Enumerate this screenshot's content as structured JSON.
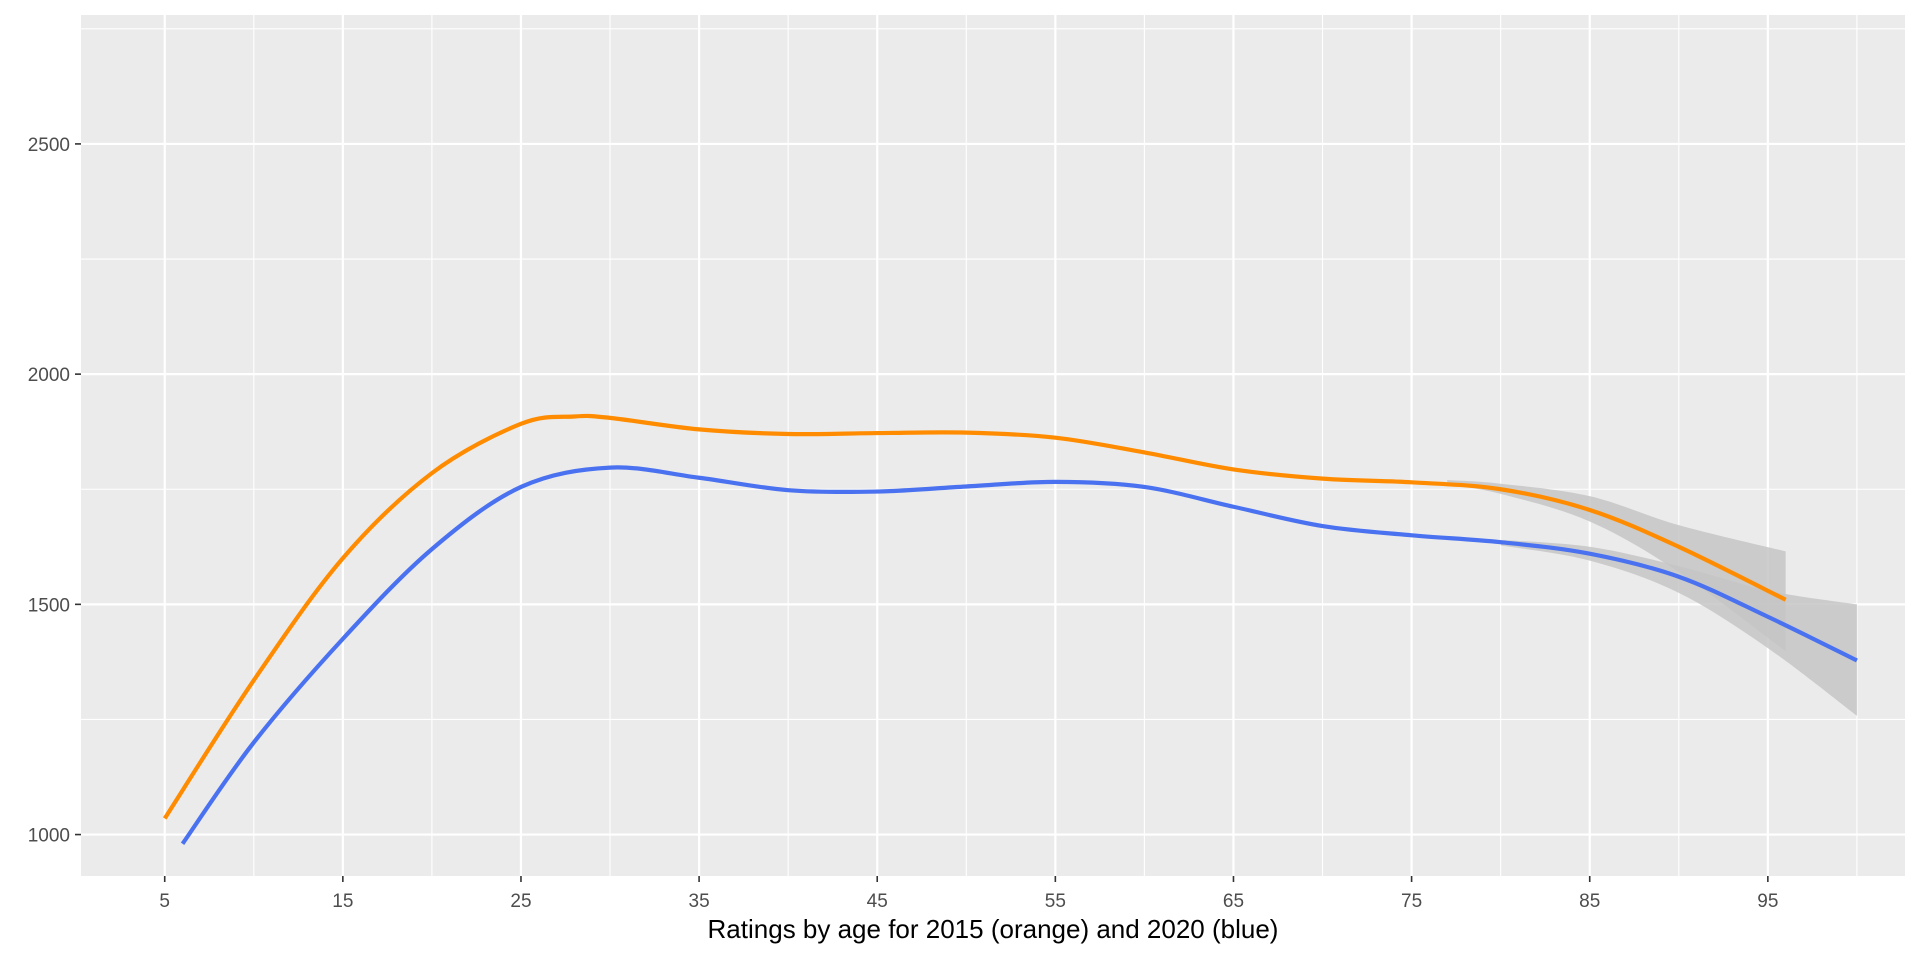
{
  "chart_data": {
    "type": "line",
    "title": "",
    "xlabel": "Ratings by age for 2015 (orange) and 2020 (blue)",
    "ylabel": "",
    "xlim": [
      0.3,
      102.7
    ],
    "ylim": [
      910,
      2780
    ],
    "x_ticks": [
      5,
      15,
      25,
      35,
      45,
      55,
      65,
      75,
      85,
      95
    ],
    "x_tick_labels": [
      "5",
      "15",
      "25",
      "35",
      "45",
      "55",
      "65",
      "75",
      "85",
      "95"
    ],
    "y_ticks": [
      1000,
      1500,
      2000,
      2500
    ],
    "y_tick_labels": [
      "1000",
      "1500",
      "2000",
      "2500"
    ],
    "grid": true,
    "legend": "none",
    "colors": {
      "panel_background": "#ebebeb",
      "grid": "#ffffff",
      "confidence_band": "#c6c6c6"
    },
    "series": [
      {
        "color": "#ff8c00",
        "x": [
          5,
          10,
          15,
          20,
          25,
          28,
          30,
          35,
          40,
          45,
          50,
          55,
          60,
          65,
          70,
          75,
          80,
          85,
          90,
          96
        ],
        "y": [
          1035,
          1335,
          1600,
          1785,
          1892,
          1908,
          1905,
          1880,
          1870,
          1872,
          1873,
          1862,
          1830,
          1793,
          1773,
          1765,
          1750,
          1705,
          1625,
          1510
        ],
        "band_x": [
          77,
          80,
          85,
          90,
          96
        ],
        "band_upper": [
          1770,
          1762,
          1735,
          1672,
          1615
        ],
        "band_lower": [
          1760,
          1740,
          1680,
          1570,
          1398
        ]
      },
      {
        "color": "#4a72f0",
        "x": [
          6,
          10,
          15,
          20,
          25,
          30,
          35,
          40,
          45,
          50,
          55,
          60,
          65,
          70,
          75,
          80,
          85,
          90,
          95,
          100
        ],
        "y": [
          980,
          1200,
          1425,
          1620,
          1755,
          1797,
          1775,
          1748,
          1745,
          1756,
          1766,
          1755,
          1712,
          1670,
          1650,
          1635,
          1610,
          1560,
          1473,
          1378
        ],
        "band_x": [
          80,
          85,
          90,
          95,
          100
        ],
        "band_upper": [
          1640,
          1625,
          1583,
          1530,
          1500
        ],
        "band_lower": [
          1628,
          1595,
          1525,
          1405,
          1258
        ]
      }
    ]
  }
}
